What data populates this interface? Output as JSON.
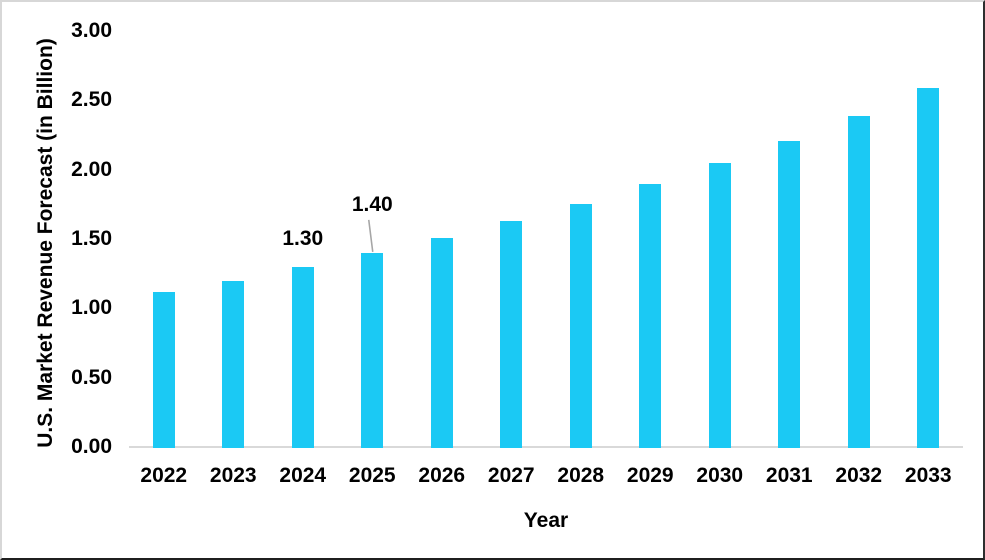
{
  "chart_data": {
    "type": "bar",
    "title": "",
    "categories": [
      "2022",
      "2023",
      "2024",
      "2025",
      "2026",
      "2027",
      "2028",
      "2029",
      "2030",
      "2031",
      "2032",
      "2033"
    ],
    "values": [
      1.12,
      1.2,
      1.3,
      1.4,
      1.51,
      1.63,
      1.75,
      1.9,
      2.05,
      2.21,
      2.39,
      2.59
    ],
    "xlabel": "Year",
    "ylabel": "U.S. Market Revenue Forecast (in Billion)",
    "y_ticks": [
      "0.00",
      "0.50",
      "1.00",
      "1.50",
      "2.00",
      "2.50",
      "3.00"
    ],
    "ylim": [
      0,
      3.0
    ],
    "grid": false,
    "legend": false,
    "bar_color": "#1BC9F4",
    "axis_line_color": "#D9D9D9",
    "text_color": "#000000",
    "leader_line_color": "#A6A6A6",
    "data_labels": [
      {
        "category": "2024",
        "text": "1.30",
        "leader": false
      },
      {
        "category": "2025",
        "text": "1.40",
        "leader": true
      }
    ]
  }
}
